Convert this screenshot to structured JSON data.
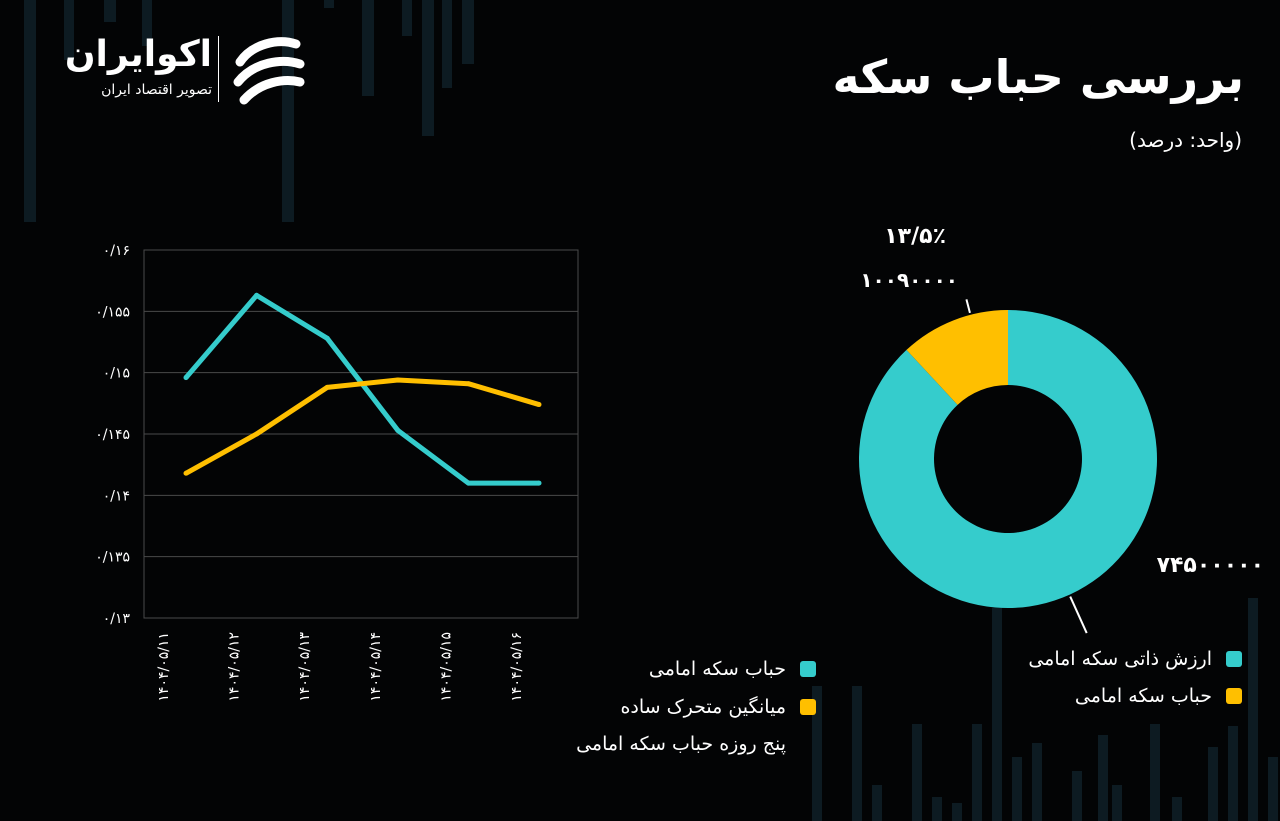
{
  "brand": {
    "name": "اکوایران",
    "tagline": "تصویر اقتصاد ایران"
  },
  "header": {
    "title": "بررسی حباب سکه",
    "unit": "(واحد: درصد)"
  },
  "colors": {
    "background": "#030405",
    "teal": "#35cccc",
    "yellow": "#ffbf00",
    "grid": "#4a4a4a",
    "text": "#ffffff"
  },
  "chart_data": [
    {
      "type": "line",
      "x": [
        "۱۴۰۴/۰۵/۱۱",
        "۱۴۰۴/۰۵/۱۲",
        "۱۴۰۴/۰۵/۱۳",
        "۱۴۰۴/۰۵/۱۴",
        "۱۴۰۴/۰۵/۱۵",
        "۱۴۰۴/۰۵/۱۶"
      ],
      "ylim": [
        0.13,
        0.16
      ],
      "yticks": [
        0.13,
        0.135,
        0.14,
        0.145,
        0.15,
        0.155,
        0.16
      ],
      "ytick_labels": [
        "۰/۱۳",
        "۰/۱۳۵",
        "۰/۱۴",
        "۰/۱۴۵",
        "۰/۱۵",
        "۰/۱۵۵",
        "۰/۱۶"
      ],
      "grid": true,
      "series": [
        {
          "name": "حباب سکه امامی",
          "color": "#35cccc",
          "values": [
            0.1496,
            0.1563,
            0.1528,
            0.1453,
            0.141,
            0.141
          ]
        },
        {
          "name": "میانگین متحرک ساده پنج روزه حباب سکه امامی",
          "color": "#ffbf00",
          "values": [
            0.1418,
            0.145,
            0.1488,
            0.1494,
            0.1491,
            0.1474
          ]
        }
      ],
      "legend": {
        "items": [
          {
            "label": "حباب سکه امامی",
            "color": "#35cccc"
          },
          {
            "label": "میانگین متحرک ساده",
            "label_cont": "پنج روزه حباب سکه امامی",
            "color": "#ffbf00"
          }
        ]
      }
    },
    {
      "type": "pie",
      "donut": true,
      "slices": [
        {
          "name": "ارزش ذاتی سکه امامی",
          "value": 74500000,
          "label": "۷۴۵۰۰۰۰۰",
          "color": "#35cccc"
        },
        {
          "name": "حباب سکه امامی",
          "value": 10090000,
          "label": "۱۰۰۹۰۰۰۰",
          "percent_label": "۱۳/۵٪",
          "color": "#ffbf00"
        }
      ]
    }
  ]
}
